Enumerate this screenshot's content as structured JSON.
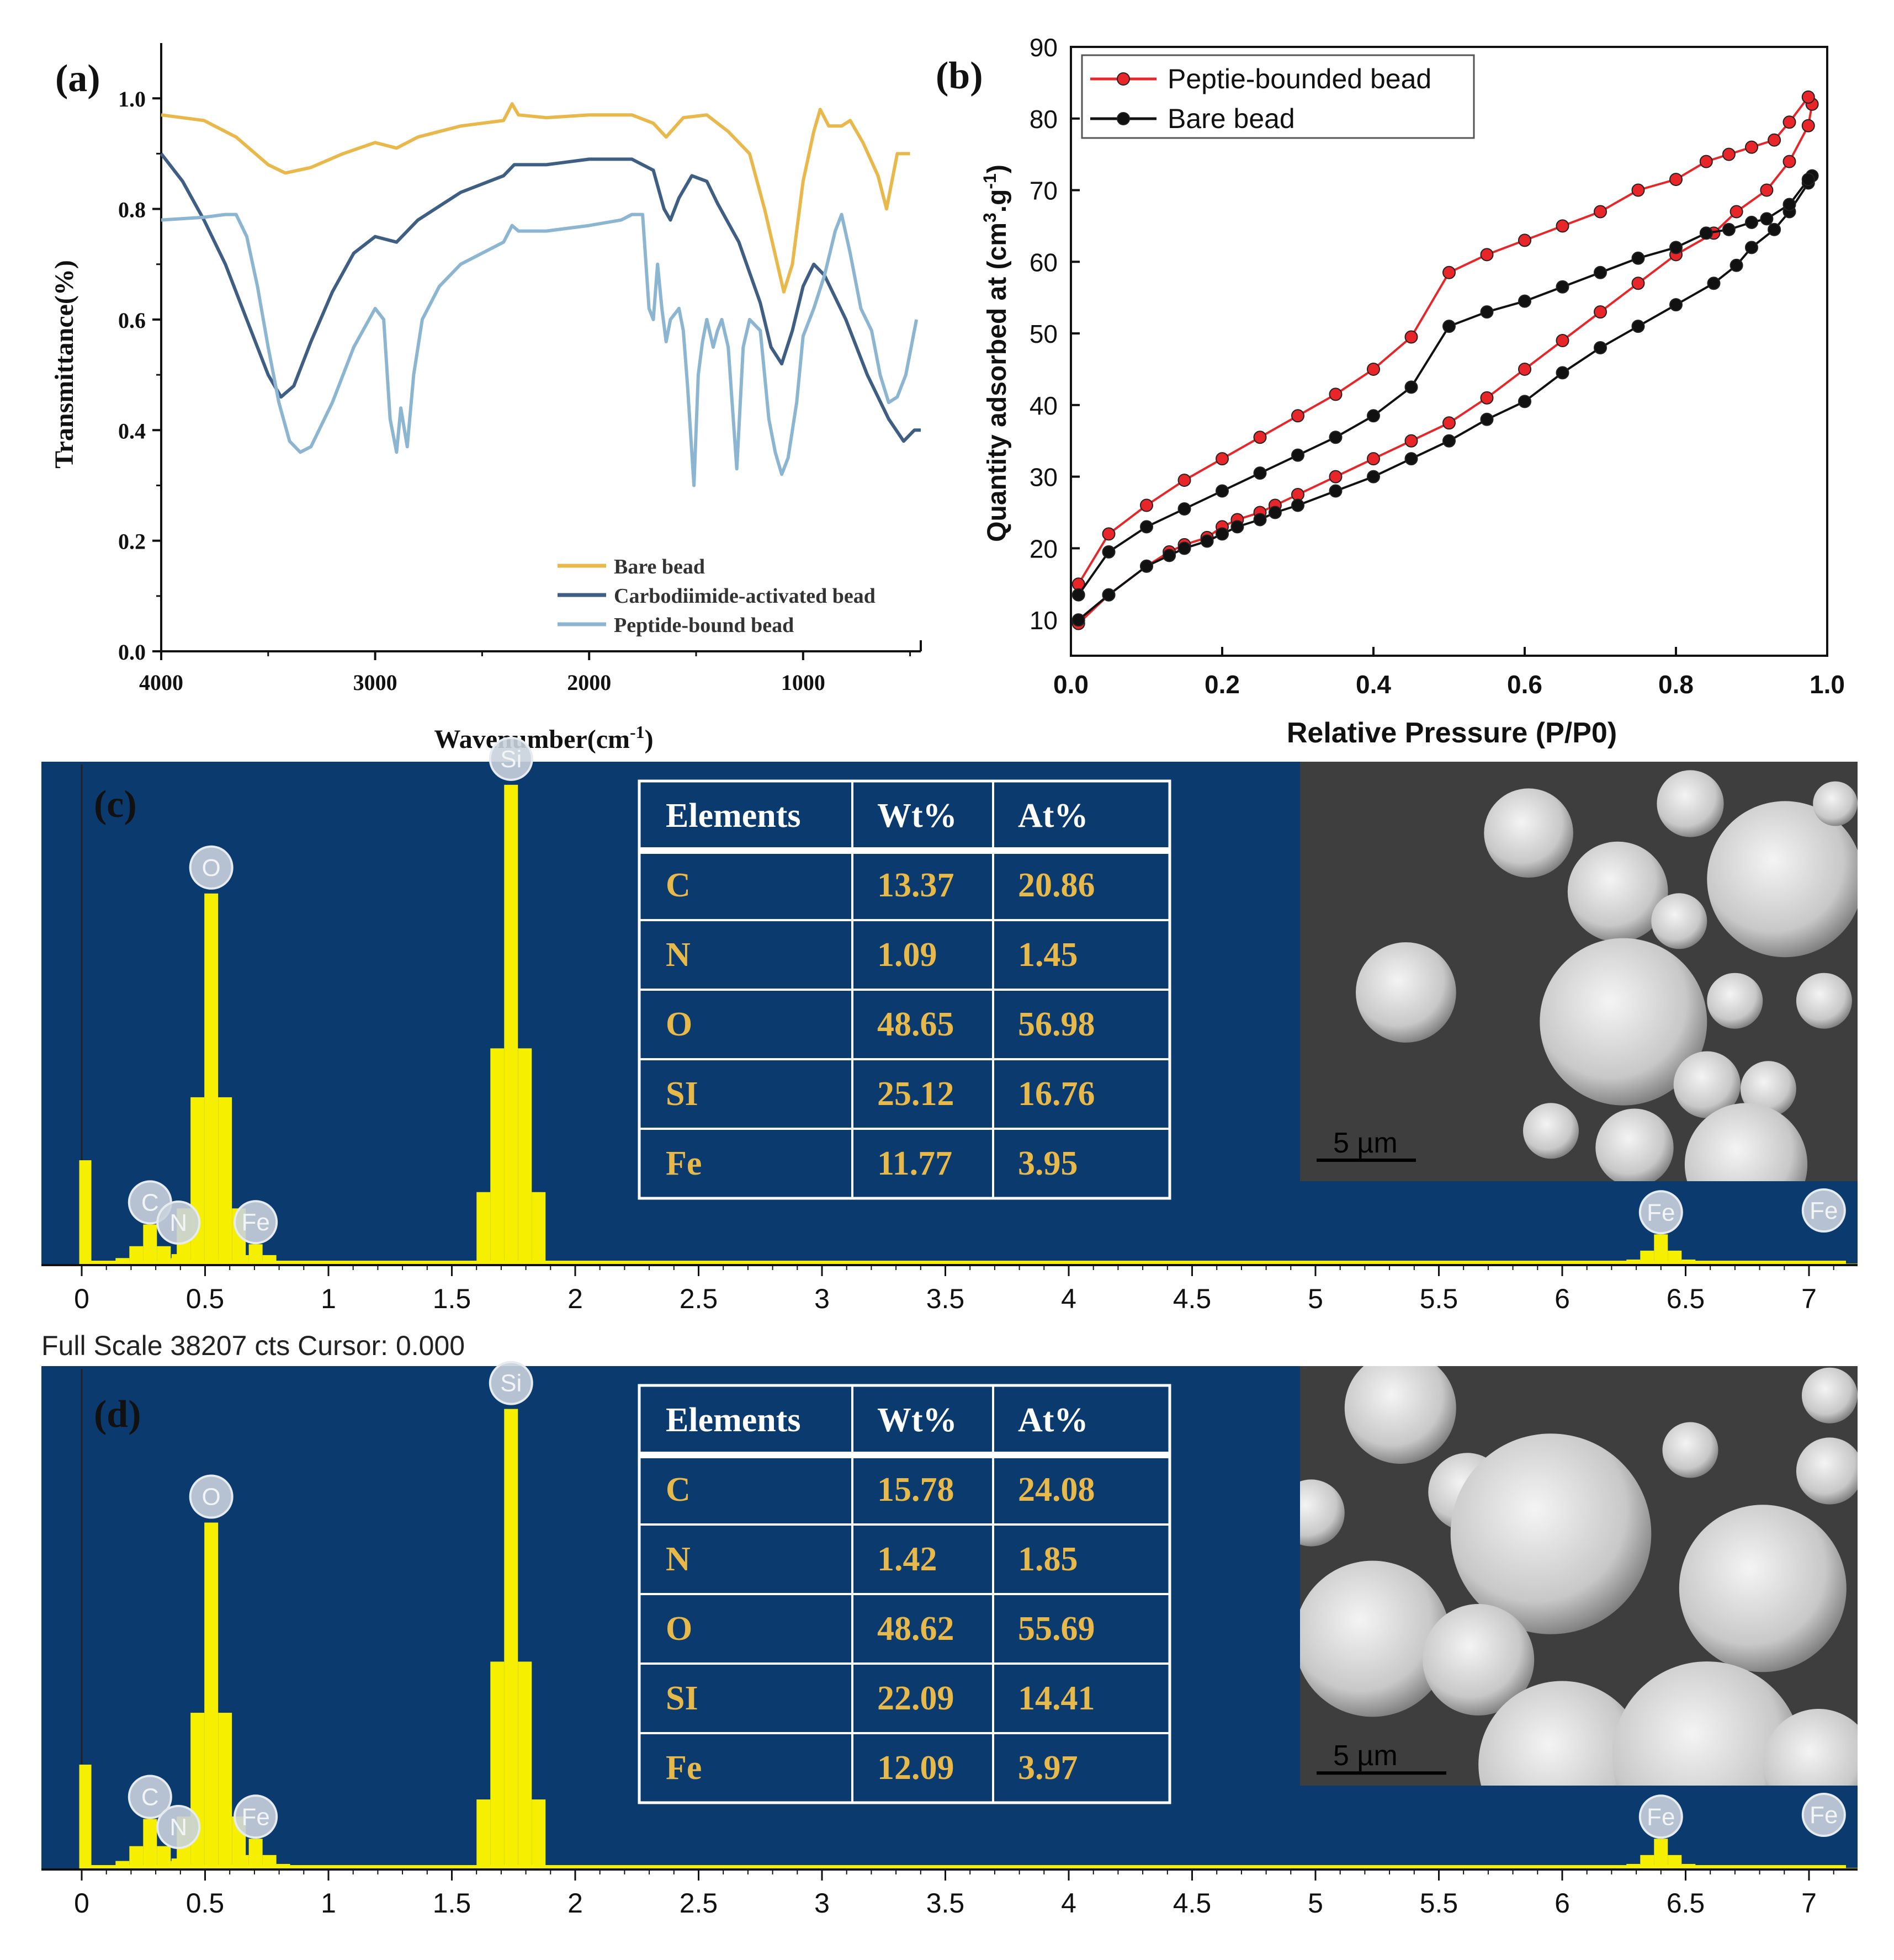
{
  "chart_data": [
    {
      "id": "a",
      "type": "line",
      "panel_label": "(a)",
      "title": "",
      "xlabel": "Wavenumber(cm",
      "xlabel_sup": "-1",
      "xlabel_end": ")",
      "ylabel": "Transmittance(%)",
      "xlim": [
        4000,
        450
      ],
      "ylim": [
        0,
        1.1
      ],
      "xticks": [
        4000,
        3000,
        2000,
        1000
      ],
      "yticks": [
        0.0,
        0.2,
        0.4,
        0.6,
        0.8,
        1.0
      ],
      "ytick_labels": [
        "0.0",
        "0.2",
        "0.4",
        "0.6",
        "0.8",
        "1.0"
      ],
      "legend_position": "bottom-right",
      "series": [
        {
          "name": "Bare bead",
          "color": "#e8b84a",
          "points": [
            [
              4000,
              0.97
            ],
            [
              3800,
              0.96
            ],
            [
              3650,
              0.93
            ],
            [
              3500,
              0.88
            ],
            [
              3420,
              0.865
            ],
            [
              3300,
              0.875
            ],
            [
              3150,
              0.9
            ],
            [
              3000,
              0.92
            ],
            [
              2900,
              0.91
            ],
            [
              2800,
              0.93
            ],
            [
              2600,
              0.95
            ],
            [
              2400,
              0.96
            ],
            [
              2360,
              0.99
            ],
            [
              2330,
              0.97
            ],
            [
              2200,
              0.965
            ],
            [
              2000,
              0.97
            ],
            [
              1800,
              0.97
            ],
            [
              1700,
              0.955
            ],
            [
              1640,
              0.93
            ],
            [
              1560,
              0.965
            ],
            [
              1450,
              0.97
            ],
            [
              1350,
              0.94
            ],
            [
              1250,
              0.9
            ],
            [
              1180,
              0.8
            ],
            [
              1120,
              0.7
            ],
            [
              1090,
              0.65
            ],
            [
              1050,
              0.7
            ],
            [
              1000,
              0.85
            ],
            [
              950,
              0.94
            ],
            [
              920,
              0.98
            ],
            [
              880,
              0.95
            ],
            [
              820,
              0.95
            ],
            [
              780,
              0.96
            ],
            [
              720,
              0.92
            ],
            [
              650,
              0.86
            ],
            [
              610,
              0.8
            ],
            [
              560,
              0.9
            ],
            [
              500,
              0.9
            ]
          ]
        },
        {
          "name": "Carbodiimide-activated bead",
          "color": "#3e5f83",
          "points": [
            [
              4000,
              0.9
            ],
            [
              3900,
              0.85
            ],
            [
              3800,
              0.78
            ],
            [
              3700,
              0.7
            ],
            [
              3600,
              0.6
            ],
            [
              3500,
              0.5
            ],
            [
              3440,
              0.46
            ],
            [
              3380,
              0.48
            ],
            [
              3300,
              0.56
            ],
            [
              3200,
              0.65
            ],
            [
              3100,
              0.72
            ],
            [
              3000,
              0.75
            ],
            [
              2900,
              0.74
            ],
            [
              2800,
              0.78
            ],
            [
              2600,
              0.83
            ],
            [
              2400,
              0.86
            ],
            [
              2350,
              0.88
            ],
            [
              2200,
              0.88
            ],
            [
              2000,
              0.89
            ],
            [
              1800,
              0.89
            ],
            [
              1700,
              0.87
            ],
            [
              1650,
              0.8
            ],
            [
              1620,
              0.78
            ],
            [
              1580,
              0.82
            ],
            [
              1520,
              0.86
            ],
            [
              1450,
              0.85
            ],
            [
              1400,
              0.81
            ],
            [
              1300,
              0.74
            ],
            [
              1200,
              0.63
            ],
            [
              1150,
              0.55
            ],
            [
              1100,
              0.52
            ],
            [
              1050,
              0.58
            ],
            [
              1000,
              0.66
            ],
            [
              950,
              0.7
            ],
            [
              900,
              0.68
            ],
            [
              800,
              0.6
            ],
            [
              700,
              0.5
            ],
            [
              600,
              0.42
            ],
            [
              530,
              0.38
            ],
            [
              480,
              0.4
            ],
            [
              450,
              0.4
            ]
          ]
        },
        {
          "name": "Peptide-bound bead",
          "color": "#8cb5d1",
          "points": [
            [
              4000,
              0.78
            ],
            [
              3800,
              0.785
            ],
            [
              3700,
              0.79
            ],
            [
              3650,
              0.79
            ],
            [
              3600,
              0.75
            ],
            [
              3550,
              0.66
            ],
            [
              3500,
              0.55
            ],
            [
              3450,
              0.45
            ],
            [
              3400,
              0.38
            ],
            [
              3350,
              0.36
            ],
            [
              3300,
              0.37
            ],
            [
              3200,
              0.45
            ],
            [
              3100,
              0.55
            ],
            [
              3000,
              0.62
            ],
            [
              2960,
              0.6
            ],
            [
              2930,
              0.42
            ],
            [
              2900,
              0.36
            ],
            [
              2880,
              0.44
            ],
            [
              2850,
              0.37
            ],
            [
              2820,
              0.5
            ],
            [
              2780,
              0.6
            ],
            [
              2700,
              0.66
            ],
            [
              2600,
              0.7
            ],
            [
              2400,
              0.74
            ],
            [
              2360,
              0.77
            ],
            [
              2330,
              0.76
            ],
            [
              2200,
              0.76
            ],
            [
              2000,
              0.77
            ],
            [
              1850,
              0.78
            ],
            [
              1800,
              0.79
            ],
            [
              1750,
              0.79
            ],
            [
              1720,
              0.62
            ],
            [
              1700,
              0.6
            ],
            [
              1680,
              0.7
            ],
            [
              1660,
              0.62
            ],
            [
              1640,
              0.56
            ],
            [
              1620,
              0.6
            ],
            [
              1580,
              0.62
            ],
            [
              1560,
              0.58
            ],
            [
              1540,
              0.48
            ],
            [
              1510,
              0.3
            ],
            [
              1490,
              0.5
            ],
            [
              1470,
              0.56
            ],
            [
              1450,
              0.6
            ],
            [
              1420,
              0.55
            ],
            [
              1400,
              0.58
            ],
            [
              1380,
              0.6
            ],
            [
              1350,
              0.55
            ],
            [
              1310,
              0.33
            ],
            [
              1280,
              0.55
            ],
            [
              1250,
              0.6
            ],
            [
              1200,
              0.58
            ],
            [
              1160,
              0.42
            ],
            [
              1130,
              0.36
            ],
            [
              1100,
              0.32
            ],
            [
              1070,
              0.35
            ],
            [
              1030,
              0.45
            ],
            [
              1000,
              0.57
            ],
            [
              950,
              0.62
            ],
            [
              900,
              0.68
            ],
            [
              850,
              0.76
            ],
            [
              820,
              0.79
            ],
            [
              780,
              0.72
            ],
            [
              730,
              0.62
            ],
            [
              680,
              0.58
            ],
            [
              640,
              0.5
            ],
            [
              600,
              0.45
            ],
            [
              560,
              0.46
            ],
            [
              520,
              0.5
            ],
            [
              490,
              0.56
            ],
            [
              470,
              0.6
            ]
          ]
        }
      ]
    },
    {
      "id": "b",
      "type": "line",
      "panel_label": "(b)",
      "title": "",
      "xlabel": "Relative Pressure (P/P0)",
      "ylabel": "Quantity adsorbed at (cm",
      "ylabel_sup1": "3",
      "ylabel_mid": ".g",
      "ylabel_sup2": "-1",
      "ylabel_end": ")",
      "xlim": [
        0,
        1.0
      ],
      "ylim": [
        5,
        90
      ],
      "xticks": [
        0.0,
        0.2,
        0.4,
        0.6,
        0.8,
        1.0
      ],
      "xtick_labels": [
        "0.0",
        "0.2",
        "0.4",
        "0.6",
        "0.8",
        "1.0"
      ],
      "yticks": [
        10,
        20,
        30,
        40,
        50,
        60,
        70,
        80,
        90
      ],
      "legend_position": "top-left",
      "series": [
        {
          "name": "Peptie-bounded bead",
          "color": "#e8262a",
          "x": [
            0.01,
            0.05,
            0.1,
            0.13,
            0.15,
            0.18,
            0.2,
            0.22,
            0.25,
            0.27,
            0.3,
            0.35,
            0.4,
            0.45,
            0.5,
            0.55,
            0.6,
            0.65,
            0.7,
            0.75,
            0.8,
            0.85,
            0.88,
            0.92,
            0.95,
            0.975,
            0.98,
            0.975,
            0.95,
            0.93,
            0.9,
            0.87,
            0.84,
            0.8,
            0.75,
            0.7,
            0.65,
            0.6,
            0.55,
            0.5,
            0.45,
            0.4,
            0.35,
            0.3,
            0.25,
            0.2,
            0.15,
            0.1,
            0.05,
            0.01
          ],
          "y": [
            9.5,
            13.5,
            17.5,
            19.5,
            20.5,
            21.5,
            23,
            24,
            25,
            26,
            27.5,
            30,
            32.5,
            35,
            37.5,
            41,
            45,
            49,
            53,
            57,
            61,
            64,
            67,
            70,
            74,
            79,
            82,
            83,
            79.5,
            77,
            76,
            75,
            74,
            71.5,
            70,
            67,
            65,
            63,
            61,
            58.5,
            49.5,
            45,
            41.5,
            38.5,
            35.5,
            32.5,
            29.5,
            26,
            22,
            15
          ]
        },
        {
          "name": "Bare bead",
          "color": "#111111",
          "x": [
            0.01,
            0.05,
            0.1,
            0.13,
            0.15,
            0.18,
            0.2,
            0.22,
            0.25,
            0.27,
            0.3,
            0.35,
            0.4,
            0.45,
            0.5,
            0.55,
            0.6,
            0.65,
            0.7,
            0.75,
            0.8,
            0.85,
            0.88,
            0.9,
            0.93,
            0.95,
            0.975,
            0.98,
            0.975,
            0.95,
            0.92,
            0.9,
            0.87,
            0.84,
            0.8,
            0.75,
            0.7,
            0.65,
            0.6,
            0.55,
            0.5,
            0.45,
            0.4,
            0.35,
            0.3,
            0.25,
            0.2,
            0.15,
            0.1,
            0.05,
            0.01
          ],
          "y": [
            10,
            13.5,
            17.5,
            19,
            20,
            21,
            22,
            23,
            24,
            25,
            26,
            28,
            30,
            32.5,
            35,
            38,
            40.5,
            44.5,
            48,
            51,
            54,
            57,
            59.5,
            62,
            64.5,
            67,
            71,
            72,
            71.5,
            68,
            66,
            65.5,
            64.5,
            64,
            62,
            60.5,
            58.5,
            56.5,
            54.5,
            53,
            51,
            42.5,
            38.5,
            35.5,
            33,
            30.5,
            28,
            25.5,
            23,
            19.5,
            13.5
          ]
        }
      ]
    },
    {
      "id": "c",
      "type": "bar",
      "panel_label": "(c)",
      "title": "",
      "xlabel": "",
      "footer": "Full Scale 38207 cts Cursor: 0.000",
      "xlim": [
        -0.1,
        7.2
      ],
      "xticks": [
        0,
        0.5,
        1,
        1.5,
        2,
        2.5,
        3,
        3.5,
        4,
        4.5,
        5,
        5.5,
        6,
        6.5,
        7
      ],
      "peaks": [
        {
          "label": "C",
          "keV": 0.277,
          "height": 0.08
        },
        {
          "label": "N",
          "keV": 0.392,
          "height": 0.02
        },
        {
          "label": "O",
          "keV": 0.525,
          "height": 0.75
        },
        {
          "label": "Fe",
          "keV": 0.705,
          "height": 0.04
        },
        {
          "label": "Si",
          "keV": 1.74,
          "height": 0.97
        },
        {
          "label": "Fe",
          "keV": 6.4,
          "height": 0.06
        },
        {
          "label": "Fe",
          "keV": 7.06,
          "height": 0.005
        }
      ],
      "table": {
        "headers": [
          "Elements",
          "Wt%",
          "At%"
        ],
        "rows": [
          [
            "C",
            "13.37",
            "20.86"
          ],
          [
            "N",
            "1.09",
            "1.45"
          ],
          [
            "O",
            "48.65",
            "56.98"
          ],
          [
            "SI",
            "25.12",
            "16.76"
          ],
          [
            "Fe",
            "11.77",
            "3.95"
          ]
        ]
      },
      "sem_scale": "5 µm"
    },
    {
      "id": "d",
      "type": "bar",
      "panel_label": "(d)",
      "title": "",
      "xlabel": "",
      "xlim": [
        -0.1,
        7.2
      ],
      "xticks": [
        0,
        0.5,
        1,
        1.5,
        2,
        2.5,
        3,
        3.5,
        4,
        4.5,
        5,
        5.5,
        6,
        6.5,
        7
      ],
      "peaks": [
        {
          "label": "C",
          "keV": 0.277,
          "height": 0.1
        },
        {
          "label": "N",
          "keV": 0.392,
          "height": 0.02
        },
        {
          "label": "O",
          "keV": 0.525,
          "height": 0.7
        },
        {
          "label": "Fe",
          "keV": 0.705,
          "height": 0.06
        },
        {
          "label": "Si",
          "keV": 1.74,
          "height": 0.93
        },
        {
          "label": "Fe",
          "keV": 6.4,
          "height": 0.06
        },
        {
          "label": "Fe",
          "keV": 7.06,
          "height": 0.005
        }
      ],
      "table": {
        "headers": [
          "Elements",
          "Wt%",
          "At%"
        ],
        "rows": [
          [
            "C",
            "15.78",
            "24.08"
          ],
          [
            "N",
            "1.42",
            "1.85"
          ],
          [
            "O",
            "48.62",
            "55.69"
          ],
          [
            "SI",
            "22.09",
            "14.41"
          ],
          [
            "Fe",
            "12.09",
            "3.97"
          ]
        ]
      },
      "sem_scale": "5 µm"
    }
  ],
  "colors": {
    "eds_background": "#0b3a6e",
    "eds_peak": "#f6f000",
    "table_text": "#e7b84a",
    "badge": "#c9d2dc",
    "sem_background": "#3e3e3e"
  }
}
